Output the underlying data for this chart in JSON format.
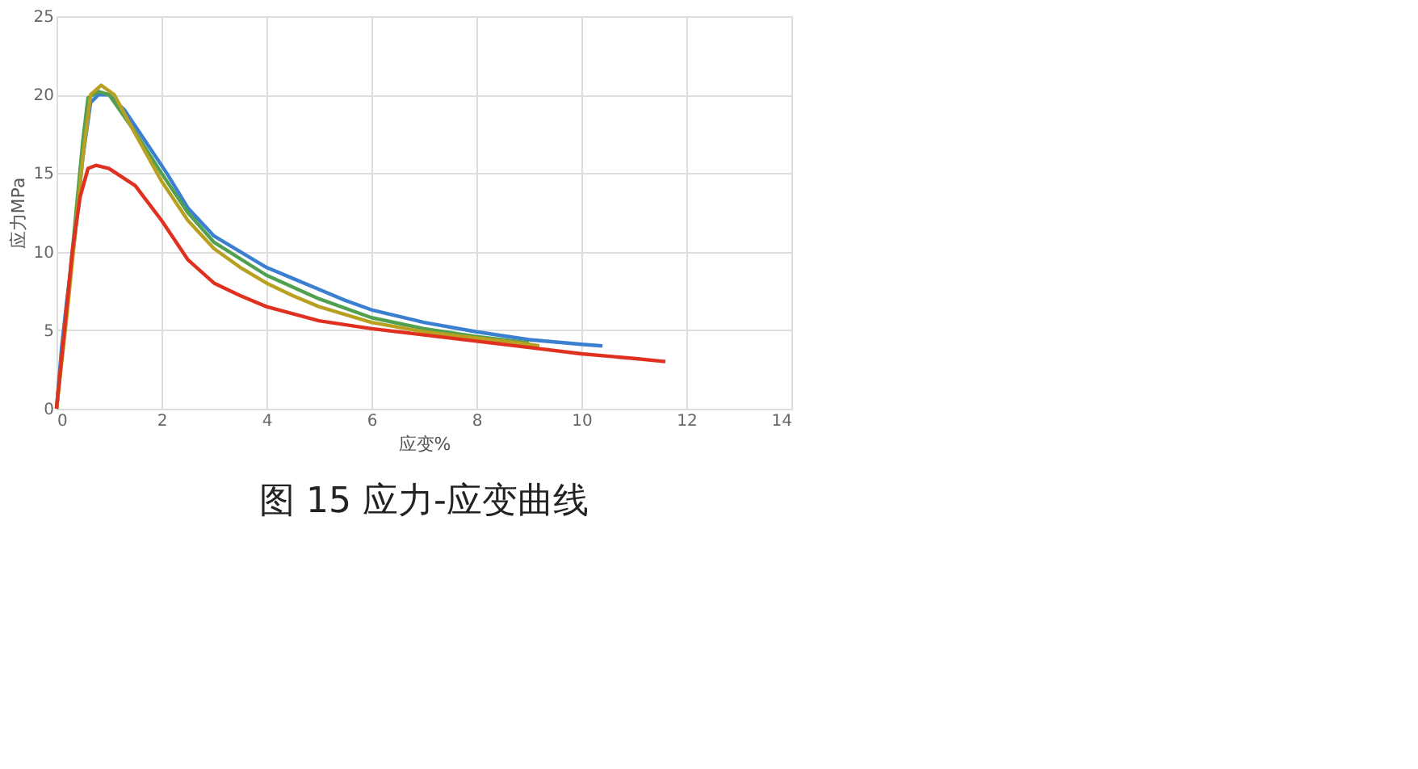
{
  "chart_data": {
    "type": "line",
    "title": "图 15 应力-应变曲线",
    "xlabel": "应变%",
    "ylabel": "应力MPa",
    "xlim": [
      0,
      14
    ],
    "xticks": [
      0,
      2,
      4,
      6,
      8,
      10,
      12,
      14
    ],
    "ylim": [
      0,
      25
    ],
    "yticks": [
      0,
      5,
      10,
      15,
      20,
      25
    ],
    "grid": true,
    "legend": false,
    "marker": "none",
    "line_style": "solid",
    "series": [
      {
        "color": "#3a7fd0",
        "x": [
          0,
          0.1,
          0.2,
          0.35,
          0.5,
          0.65,
          0.8,
          1,
          1.3,
          1.7,
          2.1,
          2.5,
          3,
          3.5,
          4,
          4.5,
          5,
          5.5,
          6,
          7,
          8,
          9,
          10,
          10.4
        ],
        "values": [
          0,
          4,
          7,
          11,
          16,
          19.5,
          20,
          20,
          19,
          17,
          15,
          12.8,
          11,
          10,
          9,
          8.3,
          7.6,
          6.9,
          6.3,
          5.5,
          4.9,
          4.4,
          4.1,
          4.0
        ]
      },
      {
        "color": "#50a050",
        "x": [
          0,
          0.15,
          0.3,
          0.5,
          0.6,
          0.8,
          1,
          1.5,
          2,
          2.5,
          3,
          4,
          5,
          6,
          7,
          8,
          9
        ],
        "values": [
          0,
          5,
          10,
          17,
          19.8,
          20.2,
          20,
          17.6,
          15,
          12.5,
          10.6,
          8.5,
          7,
          5.8,
          5.1,
          4.6,
          4.2
        ]
      },
      {
        "color": "#b8a020",
        "x": [
          0,
          0.1,
          0.2,
          0.35,
          0.5,
          0.65,
          0.85,
          1.1,
          1.5,
          2,
          2.5,
          3,
          3.5,
          4,
          4.5,
          5,
          6,
          7,
          8,
          9,
          9.2
        ],
        "values": [
          0,
          3,
          6,
          11,
          16,
          20,
          20.6,
          20,
          17.5,
          14.5,
          12,
          10.2,
          9,
          8,
          7.2,
          6.5,
          5.5,
          4.9,
          4.5,
          4.1,
          4.0
        ]
      },
      {
        "color": "#e03020",
        "x": [
          0,
          0.15,
          0.3,
          0.45,
          0.6,
          0.75,
          1,
          1.5,
          2,
          2.5,
          3,
          3.5,
          4,
          5,
          6,
          7,
          8,
          9,
          10,
          11,
          11.6
        ],
        "values": [
          0,
          5,
          10,
          13.5,
          15.3,
          15.5,
          15.3,
          14.2,
          12,
          9.5,
          8,
          7.2,
          6.5,
          5.6,
          5.1,
          4.7,
          4.3,
          3.9,
          3.5,
          3.2,
          3.0
        ]
      }
    ]
  }
}
